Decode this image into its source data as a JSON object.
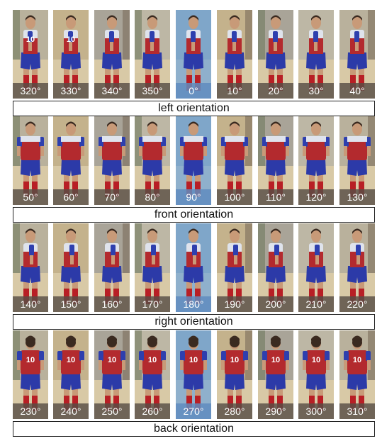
{
  "groups": [
    {
      "label": "left orientation",
      "view": "left",
      "angles": [
        "320°",
        "330°",
        "340°",
        "350°",
        "0°",
        "10°",
        "20°",
        "30°",
        "40°"
      ]
    },
    {
      "label": "front orientation",
      "view": "front",
      "angles": [
        "50°",
        "60°",
        "70°",
        "80°",
        "90°",
        "100°",
        "110°",
        "120°",
        "130°"
      ]
    },
    {
      "label": "right orientation",
      "view": "right",
      "angles": [
        "140°",
        "150°",
        "160°",
        "170°",
        "180°",
        "190°",
        "200°",
        "210°",
        "220°"
      ]
    },
    {
      "label": "back orientation",
      "view": "back",
      "angles": [
        "230°",
        "240°",
        "250°",
        "260°",
        "270°",
        "280°",
        "290°",
        "300°",
        "310°"
      ]
    }
  ],
  "highlight_index": 4,
  "jersey_number": "10",
  "colors": {
    "shirt_red": "#b32a2e",
    "shirt_white": "#dfe3ec",
    "sleeve_blue": "#2e3fae",
    "shorts_blue": "#2c3aa8",
    "socks_red": "#b81f25",
    "skin": "#c89a78",
    "hair": "#3a2a20"
  }
}
